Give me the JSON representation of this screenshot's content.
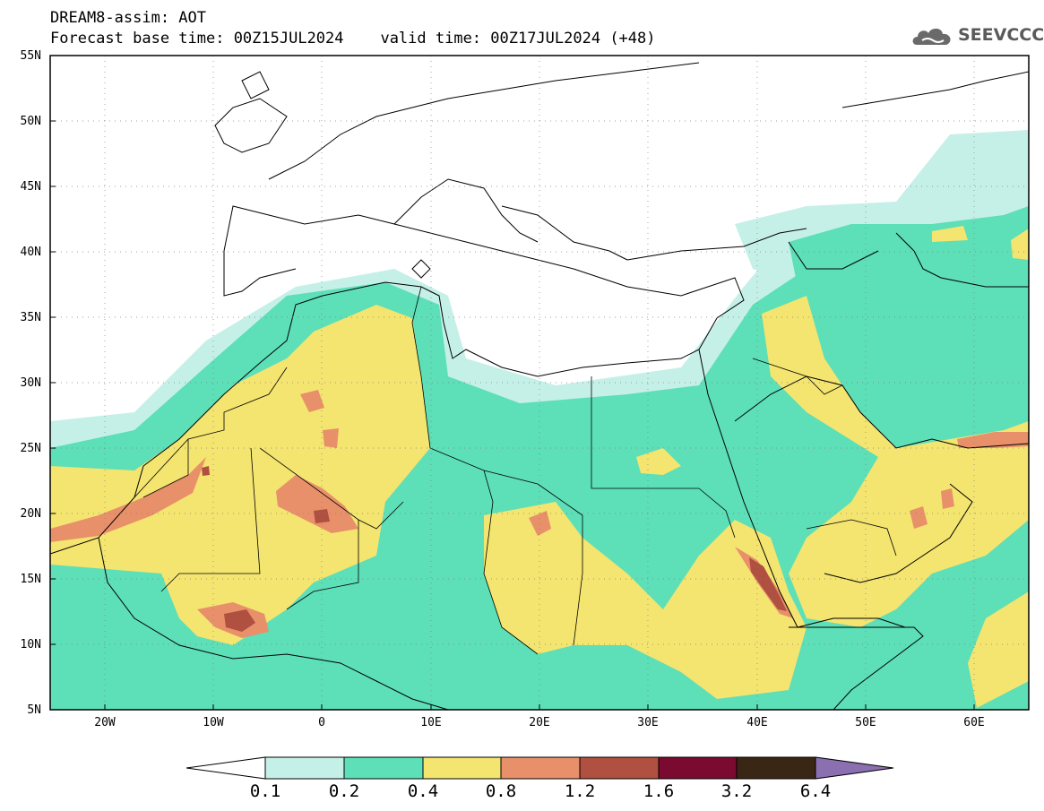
{
  "header": {
    "line1": "DREAM8-assim: AOT",
    "line2": "Forecast base time: 00Z15JUL2024    valid time: 00Z17JUL2024 (+48)"
  },
  "logo": {
    "text": "SEEVCCC",
    "icon": "cloud-icon"
  },
  "map": {
    "lon_range": [
      -25,
      65
    ],
    "lat_range": [
      5,
      55
    ],
    "lat_labels": [
      "5N",
      "10N",
      "15N",
      "20N",
      "25N",
      "30N",
      "35N",
      "40N",
      "45N",
      "50N",
      "55N"
    ],
    "lon_labels": [
      "20W",
      "10W",
      "0",
      "10E",
      "20E",
      "30E",
      "40E",
      "50E",
      "60E"
    ]
  },
  "legend": {
    "labels": [
      "0.1",
      "0.2",
      "0.4",
      "0.8",
      "1.2",
      "1.6",
      "3.2",
      "6.4"
    ],
    "colors": [
      "#ffffff",
      "#c5f0e8",
      "#5ddfb8",
      "#f4e470",
      "#e8906a",
      "#b05040",
      "#7a0a30",
      "#3a2614",
      "#8a70b0"
    ]
  }
}
